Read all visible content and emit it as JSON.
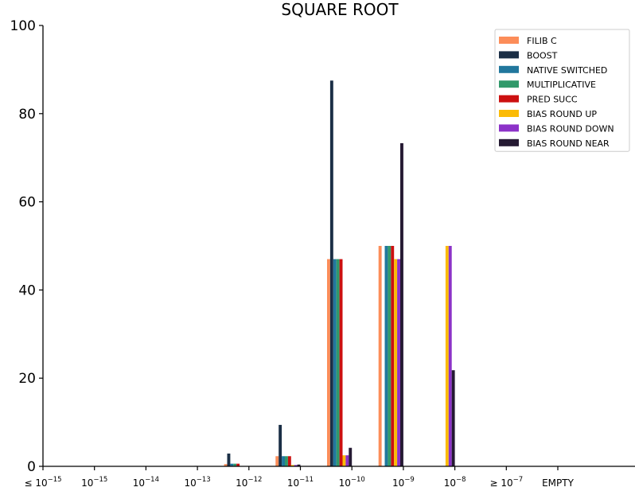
{
  "chart_data": {
    "type": "bar",
    "title": "SQUARE ROOT",
    "xlabel": "",
    "ylabel": "",
    "ylim": [
      0,
      100
    ],
    "yticks": [
      0,
      20,
      40,
      60,
      80,
      100
    ],
    "categories": [
      {
        "base": "≤ 10",
        "exp": "−15"
      },
      {
        "base": "10",
        "exp": "−15"
      },
      {
        "base": "10",
        "exp": "−14"
      },
      {
        "base": "10",
        "exp": "−13"
      },
      {
        "base": "10",
        "exp": "−12"
      },
      {
        "base": "10",
        "exp": "−11"
      },
      {
        "base": "10",
        "exp": "−10"
      },
      {
        "base": "10",
        "exp": "−9"
      },
      {
        "base": "10",
        "exp": "−8"
      },
      {
        "base": "≥ 10",
        "exp": "−7"
      },
      {
        "base": "EMPTY",
        "exp": ""
      }
    ],
    "legend_position": "top-right",
    "grid": false,
    "series": [
      {
        "name": "FILIB C",
        "color": "#fc8d59",
        "values": [
          0,
          0,
          0,
          0,
          0.5,
          2.3,
          47,
          50,
          0,
          0,
          0
        ]
      },
      {
        "name": "BOOST",
        "color": "#1b2f46",
        "values": [
          0,
          0,
          0,
          0,
          2.9,
          9.4,
          87.5,
          0,
          0,
          0,
          0
        ]
      },
      {
        "name": "NATIVE SWITCHED",
        "color": "#21779d",
        "values": [
          0,
          0,
          0,
          0,
          0.6,
          2.3,
          47,
          50,
          0,
          0,
          0
        ]
      },
      {
        "name": "MULTIPLICATIVE",
        "color": "#31996a",
        "values": [
          0,
          0,
          0,
          0,
          0.6,
          2.3,
          47,
          50,
          0,
          0,
          0
        ]
      },
      {
        "name": "PRED SUCC",
        "color": "#cc1010",
        "values": [
          0,
          0,
          0,
          0,
          0.6,
          2.3,
          47,
          50,
          0,
          0,
          0
        ]
      },
      {
        "name": "BIAS ROUND UP",
        "color": "#fbbb06",
        "values": [
          0,
          0,
          0,
          0,
          0,
          0.3,
          2.5,
          47,
          50,
          0,
          0
        ]
      },
      {
        "name": "BIAS ROUND DOWN",
        "color": "#8c32c8",
        "values": [
          0,
          0,
          0,
          0,
          0,
          0.3,
          2.5,
          47,
          50,
          0,
          0
        ]
      },
      {
        "name": "BIAS ROUND NEAR",
        "color": "#251a33",
        "values": [
          0,
          0,
          0,
          0.1,
          0,
          0.4,
          4.2,
          73.3,
          21.8,
          0,
          0
        ]
      }
    ]
  }
}
